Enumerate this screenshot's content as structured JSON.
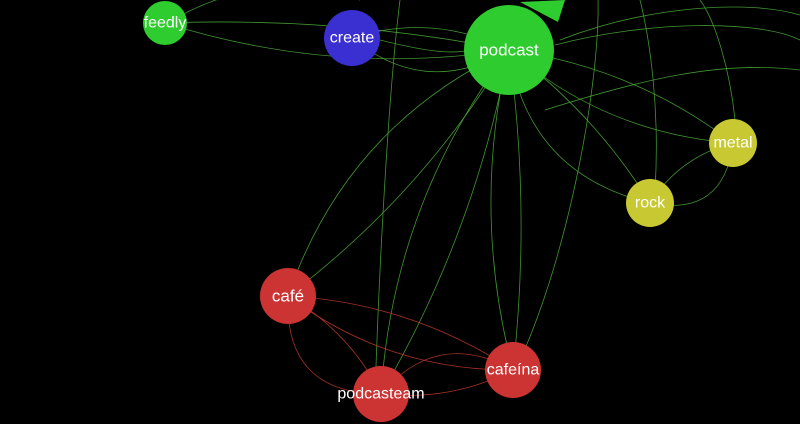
{
  "colors": {
    "background": "#000000",
    "community_green": "#2ecc2e",
    "community_blue": "#3a2fd0",
    "community_yellow": "#c8c832",
    "community_red": "#cc3333",
    "edge_green": "#4caf3a",
    "edge_red": "#c0392b",
    "label": "#ffffff"
  },
  "nodes": [
    {
      "id": "feedly",
      "label": "feedly",
      "color": "community_green"
    },
    {
      "id": "create",
      "label": "create",
      "color": "community_blue"
    },
    {
      "id": "podcast",
      "label": "podcast",
      "color": "community_green"
    },
    {
      "id": "metal",
      "label": "metal",
      "color": "community_yellow"
    },
    {
      "id": "rock",
      "label": "rock",
      "color": "community_yellow"
    },
    {
      "id": "cafe",
      "label": "café",
      "color": "community_red"
    },
    {
      "id": "cafeina",
      "label": "cafeína",
      "color": "community_red"
    },
    {
      "id": "podcasteam",
      "label": "podcasteam",
      "color": "community_red"
    }
  ],
  "edges": [
    {
      "source": "feedly",
      "target": "podcast",
      "color": "edge_green"
    },
    {
      "source": "create",
      "target": "podcast",
      "color": "edge_green"
    },
    {
      "source": "podcast",
      "target": "rock",
      "color": "edge_green"
    },
    {
      "source": "podcast",
      "target": "metal",
      "color": "edge_green"
    },
    {
      "source": "rock",
      "target": "metal",
      "color": "edge_green"
    },
    {
      "source": "podcast",
      "target": "cafe",
      "color": "edge_green"
    },
    {
      "source": "podcast",
      "target": "cafeina",
      "color": "edge_green"
    },
    {
      "source": "podcast",
      "target": "podcasteam",
      "color": "edge_green"
    },
    {
      "source": "cafe",
      "target": "podcasteam",
      "color": "edge_red"
    },
    {
      "source": "cafe",
      "target": "cafeina",
      "color": "edge_red"
    },
    {
      "source": "cafeina",
      "target": "podcasteam",
      "color": "edge_red"
    }
  ]
}
